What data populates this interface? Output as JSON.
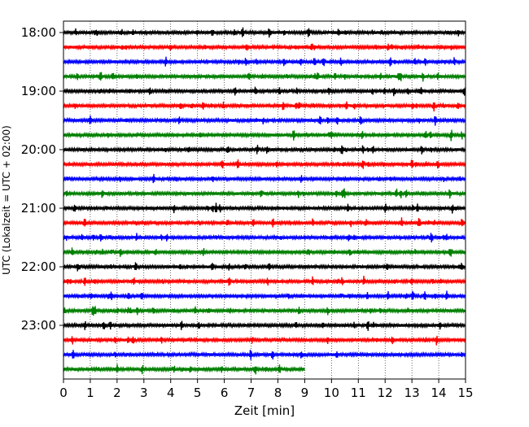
{
  "chart_data": {
    "type": "line",
    "title": "",
    "xlabel": "Zeit  [min]",
    "ylabel": "UTC (Lokalzeit = UTC + 02:00)",
    "xlim": [
      0,
      15
    ],
    "xticks": [
      "0",
      "1",
      "2",
      "3",
      "4",
      "5",
      "6",
      "7",
      "8",
      "9",
      "10",
      "11",
      "12",
      "13",
      "14",
      "15"
    ],
    "yticks": [
      "18:00",
      "19:00",
      "20:00",
      "21:00",
      "22:00",
      "23:00"
    ],
    "grid": "vertical dotted",
    "color_cycle": [
      "#000000",
      "#ff0000",
      "#0000ff",
      "#008000"
    ],
    "traces": [
      {
        "start": "18:00",
        "duration_min": 15
      },
      {
        "start": "18:15",
        "duration_min": 15
      },
      {
        "start": "18:30",
        "duration_min": 15
      },
      {
        "start": "18:45",
        "duration_min": 15
      },
      {
        "start": "19:00",
        "duration_min": 15
      },
      {
        "start": "19:15",
        "duration_min": 15
      },
      {
        "start": "19:30",
        "duration_min": 15
      },
      {
        "start": "19:45",
        "duration_min": 15
      },
      {
        "start": "20:00",
        "duration_min": 15
      },
      {
        "start": "20:15",
        "duration_min": 15
      },
      {
        "start": "20:30",
        "duration_min": 15
      },
      {
        "start": "20:45",
        "duration_min": 15
      },
      {
        "start": "21:00",
        "duration_min": 15
      },
      {
        "start": "21:15",
        "duration_min": 15
      },
      {
        "start": "21:30",
        "duration_min": 15
      },
      {
        "start": "21:45",
        "duration_min": 15
      },
      {
        "start": "22:00",
        "duration_min": 15
      },
      {
        "start": "22:15",
        "duration_min": 15
      },
      {
        "start": "22:30",
        "duration_min": 15
      },
      {
        "start": "22:45",
        "duration_min": 15
      },
      {
        "start": "23:00",
        "duration_min": 15
      },
      {
        "start": "23:15",
        "duration_min": 15
      },
      {
        "start": "23:30",
        "duration_min": 15
      },
      {
        "start": "23:45",
        "duration_min": 9
      }
    ]
  }
}
